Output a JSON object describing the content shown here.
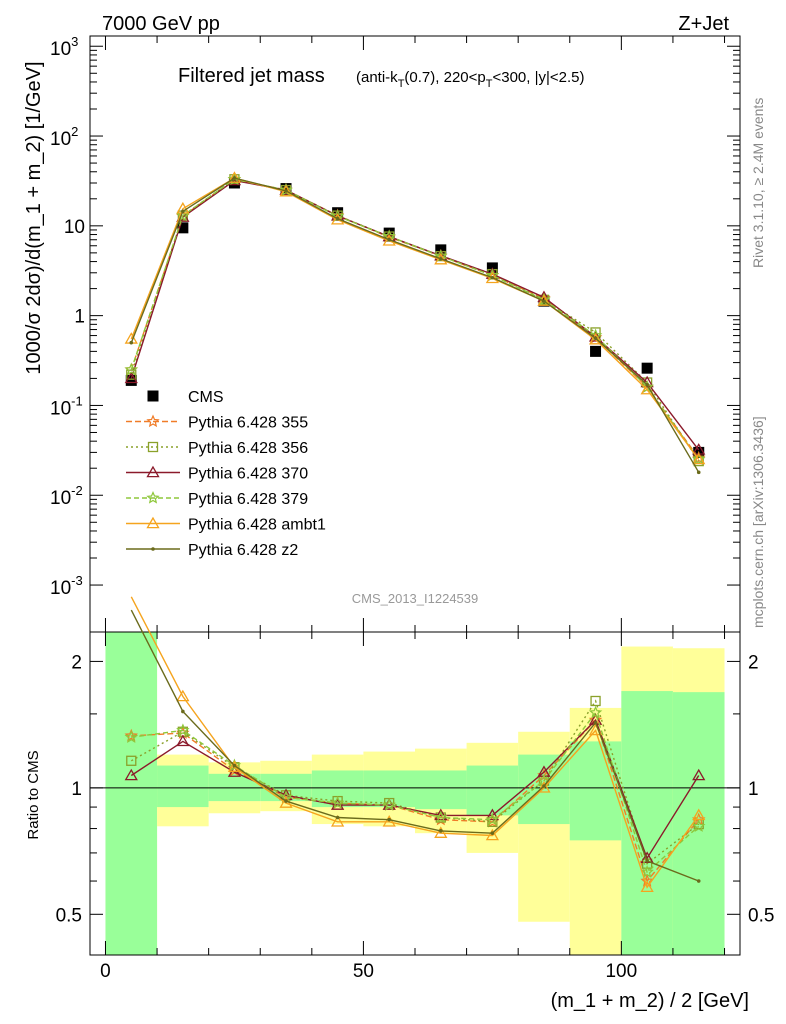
{
  "header": {
    "beam": "7000 GeV pp",
    "process": "Z+Jet",
    "title_main": "Filtered jet mass",
    "title_sub": "(anti-k",
    "title_sub_t": "T",
    "title_sub_2": "(0.7), 220<p",
    "title_sub_t2": "T",
    "title_sub_3": "<300, |y|<2.5)",
    "watermark": "CMS_2013_I1224539",
    "side_top": "Rivet 3.1.10, ≥ 2.4M events",
    "side_bottom": "mcplots.cern.ch [arXiv:1306.3436]"
  },
  "chart_data": [
    {
      "type": "scatter",
      "panel": "main",
      "ylabel": "1000/σ 2dσ)/d(m_1 + m_2) [1/GeV]",
      "yscale": "log",
      "ylim": [
        0.0003,
        1300
      ],
      "xlim": [
        -3,
        123
      ],
      "y_ticks": [
        {
          "v": 0.001,
          "base": "10",
          "exp": "-3"
        },
        {
          "v": 0.01,
          "base": "10",
          "exp": "-2"
        },
        {
          "v": 0.1,
          "base": "10",
          "exp": "-1"
        },
        {
          "v": 1,
          "base": "1",
          "exp": ""
        },
        {
          "v": 10,
          "base": "10",
          "exp": ""
        },
        {
          "v": 100,
          "base": "10",
          "exp": "2"
        },
        {
          "v": 1000,
          "base": "10",
          "exp": "3"
        }
      ],
      "x": [
        5,
        15,
        25,
        35,
        45,
        55,
        65,
        75,
        85,
        95,
        105,
        115
      ],
      "legend_placement": "lower-left",
      "series": [
        {
          "name": "CMS",
          "color": "#000000",
          "marker": "square",
          "dash": "",
          "values": [
            0.19,
            9.5,
            30,
            26,
            14,
            8.3,
            5.4,
            3.4,
            1.45,
            0.4,
            0.26,
            0.03
          ]
        },
        {
          "name": "Pythia 6.428 355",
          "color": "#f07c28",
          "marker": "star",
          "dash": "6,3",
          "values": [
            0.25,
            12.8,
            33,
            25,
            13,
            7.5,
            4.6,
            2.8,
            1.55,
            0.57,
            0.16,
            0.026
          ]
        },
        {
          "name": "Pythia 6.428 356",
          "color": "#8aa12a",
          "marker": "osquare",
          "dash": "2,3",
          "values": [
            0.22,
            13.0,
            33,
            25,
            13,
            7.6,
            4.6,
            2.9,
            1.5,
            0.65,
            0.18,
            0.024
          ]
        },
        {
          "name": "Pythia 6.428 370",
          "color": "#8b1a2b",
          "marker": "otriangle",
          "dash": "",
          "values": [
            0.2,
            12.5,
            32,
            25,
            12.9,
            7.6,
            4.65,
            2.9,
            1.6,
            0.58,
            0.18,
            0.032
          ]
        },
        {
          "name": "Pythia 6.428 379",
          "color": "#8ec73a",
          "marker": "star",
          "dash": "5,3",
          "values": [
            0.25,
            13.0,
            33,
            25,
            12.8,
            7.6,
            4.6,
            2.8,
            1.5,
            0.6,
            0.16,
            0.025
          ]
        },
        {
          "name": "Pythia 6.428 ambt1",
          "color": "#f5a41e",
          "marker": "otriangle",
          "dash": "",
          "values": [
            0.55,
            15.5,
            34,
            24,
            11.7,
            6.8,
            4.2,
            2.6,
            1.45,
            0.54,
            0.15,
            0.025
          ]
        },
        {
          "name": "Pythia 6.428 z2",
          "color": "#6b6b1c",
          "marker": "dot",
          "dash": "",
          "values": [
            0.5,
            14.5,
            34,
            24.5,
            12,
            7.0,
            4.3,
            2.65,
            1.45,
            0.56,
            0.17,
            0.018
          ]
        }
      ]
    },
    {
      "type": "line",
      "panel": "ratio",
      "ylabel": "Ratio to CMS",
      "xlabel": "(m_1 + m_2) / 2 [GeV]",
      "yscale": "log",
      "ylim": [
        0.4,
        2.35
      ],
      "xlim": [
        -3,
        123
      ],
      "y_ticks": [
        0.5,
        1,
        2
      ],
      "x_ticks": [
        0,
        50,
        100
      ],
      "bands": [
        {
          "lo": 0,
          "hi": 10,
          "green": [
            0.35,
            3.0
          ],
          "yellow": [
            0.35,
            3.0
          ]
        },
        {
          "lo": 10,
          "hi": 20,
          "green": [
            0.9,
            1.13
          ],
          "yellow": [
            0.81,
            1.2
          ]
        },
        {
          "lo": 20,
          "hi": 30,
          "green": [
            0.93,
            1.08
          ],
          "yellow": [
            0.87,
            1.15
          ]
        },
        {
          "lo": 30,
          "hi": 40,
          "green": [
            0.93,
            1.08
          ],
          "yellow": [
            0.88,
            1.16
          ]
        },
        {
          "lo": 40,
          "hi": 50,
          "green": [
            0.9,
            1.1
          ],
          "yellow": [
            0.82,
            1.2
          ]
        },
        {
          "lo": 50,
          "hi": 60,
          "green": [
            0.9,
            1.1
          ],
          "yellow": [
            0.81,
            1.22
          ]
        },
        {
          "lo": 60,
          "hi": 70,
          "green": [
            0.89,
            1.1
          ],
          "yellow": [
            0.78,
            1.24
          ]
        },
        {
          "lo": 70,
          "hi": 80,
          "green": [
            0.86,
            1.13
          ],
          "yellow": [
            0.7,
            1.28
          ]
        },
        {
          "lo": 80,
          "hi": 90,
          "green": [
            0.82,
            1.2
          ],
          "yellow": [
            0.48,
            1.36
          ]
        },
        {
          "lo": 90,
          "hi": 100,
          "green": [
            0.75,
            1.29
          ],
          "yellow": [
            0.35,
            1.55
          ]
        },
        {
          "lo": 100,
          "hi": 110,
          "green": [
            0.35,
            1.7
          ],
          "yellow": [
            0.35,
            2.17
          ]
        },
        {
          "lo": 110,
          "hi": 120,
          "green": [
            0.35,
            1.69
          ],
          "yellow": [
            0.35,
            2.15
          ]
        }
      ],
      "x": [
        5,
        15,
        25,
        35,
        45,
        55,
        65,
        75,
        85,
        95,
        105,
        115
      ],
      "series": [
        {
          "name": "Pythia 6.428 355",
          "color": "#f07c28",
          "marker": "star",
          "dash": "6,3",
          "values": [
            1.33,
            1.35,
            1.1,
            0.95,
            0.92,
            0.91,
            0.84,
            0.83,
            1.07,
            1.45,
            0.6,
            0.84
          ]
        },
        {
          "name": "Pythia 6.428 356",
          "color": "#8aa12a",
          "marker": "osquare",
          "dash": "2,3",
          "values": [
            1.16,
            1.36,
            1.12,
            0.96,
            0.93,
            0.92,
            0.85,
            0.83,
            1.04,
            1.61,
            0.66,
            0.82
          ]
        },
        {
          "name": "Pythia 6.428 370",
          "color": "#8b1a2b",
          "marker": "otriangle",
          "dash": "",
          "values": [
            1.07,
            1.29,
            1.09,
            0.96,
            0.91,
            0.91,
            0.86,
            0.86,
            1.09,
            1.45,
            0.68,
            1.07
          ]
        },
        {
          "name": "Pythia 6.428 379",
          "color": "#8ec73a",
          "marker": "star",
          "dash": "5,3",
          "values": [
            1.32,
            1.37,
            1.13,
            0.95,
            0.92,
            0.91,
            0.85,
            0.84,
            1.04,
            1.51,
            0.63,
            0.81
          ]
        },
        {
          "name": "Pythia 6.428 ambt1",
          "color": "#f5a41e",
          "marker": "otriangle",
          "dash": "",
          "values": [
            2.85,
            1.65,
            1.12,
            0.92,
            0.83,
            0.83,
            0.78,
            0.77,
            1.0,
            1.37,
            0.58,
            0.86
          ]
        },
        {
          "name": "Pythia 6.428 z2",
          "color": "#6b6b1c",
          "marker": "dot",
          "dash": "",
          "values": [
            2.65,
            1.52,
            1.13,
            0.93,
            0.85,
            0.84,
            0.79,
            0.78,
            1.01,
            1.43,
            0.67,
            0.6
          ]
        }
      ]
    }
  ]
}
